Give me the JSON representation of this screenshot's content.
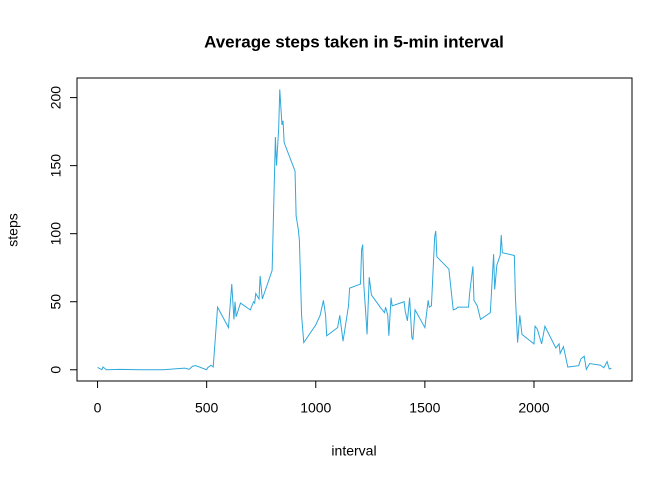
{
  "chart_data": {
    "type": "line",
    "title": "Average steps taken in 5-min interval",
    "x_label": "interval",
    "y_label": "steps",
    "x": [
      0,
      20,
      25,
      40,
      100,
      200,
      300,
      400,
      420,
      435,
      450,
      500,
      505,
      520,
      530,
      550,
      600,
      615,
      625,
      630,
      635,
      645,
      655,
      700,
      715,
      720,
      725,
      740,
      745,
      755,
      800,
      815,
      820,
      830,
      835,
      845,
      850,
      855,
      905,
      910,
      920,
      925,
      935,
      945,
      1000,
      1020,
      1035,
      1045,
      1050,
      1100,
      1110,
      1125,
      1150,
      1155,
      1205,
      1210,
      1215,
      1220,
      1230,
      1235,
      1245,
      1255,
      1300,
      1315,
      1320,
      1330,
      1335,
      1345,
      1350,
      1405,
      1410,
      1420,
      1430,
      1440,
      1445,
      1455,
      1500,
      1515,
      1520,
      1530,
      1545,
      1550,
      1555,
      1610,
      1630,
      1645,
      1650,
      1700,
      1705,
      1720,
      1725,
      1740,
      1755,
      1800,
      1815,
      1820,
      1830,
      1845,
      1850,
      1855,
      1910,
      1915,
      1925,
      1935,
      1945,
      2000,
      2005,
      2015,
      2035,
      2050,
      2100,
      2115,
      2120,
      2135,
      2155,
      2205,
      2215,
      2230,
      2240,
      2255,
      2305,
      2320,
      2335,
      2345,
      2355
    ],
    "series": [
      {
        "name": "steps",
        "color": "#2fa8dc",
        "values": [
          1.7,
          0.1,
          2.1,
          0,
          0.3,
          0,
          0,
          1.2,
          0.3,
          2.6,
          3,
          0,
          1.6,
          3.3,
          2,
          46,
          31,
          63,
          37,
          50,
          39,
          44,
          49,
          44,
          50,
          49,
          56,
          52,
          69,
          52,
          73,
          171,
          150,
          177,
          206,
          180,
          183,
          167,
          146,
          113,
          103,
          95,
          40,
          20,
          33,
          40,
          51,
          40,
          25,
          31,
          40,
          21,
          47,
          60,
          63,
          88,
          92,
          63,
          39,
          26,
          68,
          55,
          45,
          42,
          46,
          40,
          25,
          53,
          47,
          50,
          43,
          36,
          53,
          24,
          22,
          44,
          31,
          51,
          46,
          47,
          98,
          102,
          83,
          74,
          44,
          45,
          46,
          46,
          56,
          76,
          51,
          47,
          37,
          42,
          85,
          59,
          77,
          84,
          99,
          86,
          84,
          53,
          20,
          40,
          26,
          19,
          32,
          30,
          19,
          32,
          16,
          19,
          12,
          17,
          2,
          3,
          8,
          10,
          0.3,
          4.6,
          3.3,
          1.5,
          6,
          0.6,
          1.1
        ]
      }
    ],
    "xlim": [
      -94.2,
      2449.2
    ],
    "ylim": [
      -8.25,
      214.4
    ],
    "xticks": [
      0,
      500,
      1000,
      1500,
      2000
    ],
    "yticks": [
      0,
      50,
      100,
      150,
      200
    ]
  }
}
